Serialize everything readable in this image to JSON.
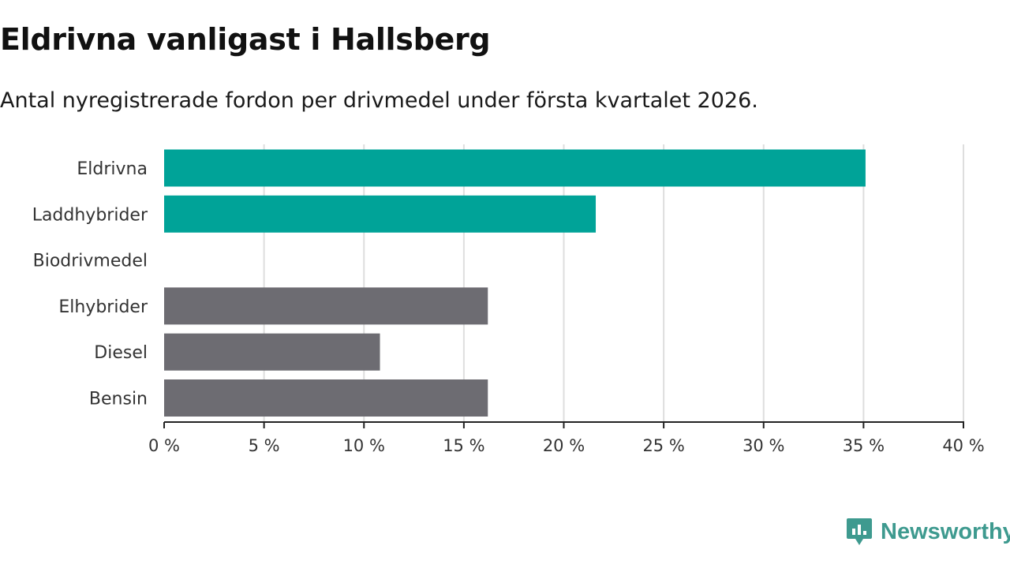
{
  "header": {
    "title": "Eldrivna vanligast i Hallsberg",
    "subtitle": "Antal nyregistrerade fordon per drivmedel under första kvartalet 2026."
  },
  "chart_data": {
    "type": "bar",
    "orientation": "horizontal",
    "title": "Eldrivna vanligast i Hallsberg",
    "subtitle": "Antal nyregistrerade fordon per drivmedel under första kvartalet 2026.",
    "xlabel": "",
    "ylabel": "",
    "categories": [
      "Eldrivna",
      "Laddhybrider",
      "Biodrivmedel",
      "Elhybrider",
      "Diesel",
      "Bensin"
    ],
    "values": [
      35.1,
      21.6,
      0,
      16.2,
      10.8,
      16.2
    ],
    "bar_colors": [
      "#00a398",
      "#00a398",
      "#00a398",
      "#6d6c72",
      "#6d6c72",
      "#6d6c72"
    ],
    "xlim": [
      0,
      40
    ],
    "xticks": [
      0,
      5,
      10,
      15,
      20,
      25,
      30,
      35,
      40
    ],
    "xtick_labels": [
      "0 %",
      "5 %",
      "10 %",
      "15 %",
      "20 %",
      "25 %",
      "30 %",
      "35 %",
      "40 %"
    ],
    "grid": true,
    "legend": "none"
  },
  "branding": {
    "name": "Newsworthy",
    "color": "#3e9a8f",
    "icon": "newsworthy-logo-icon"
  }
}
